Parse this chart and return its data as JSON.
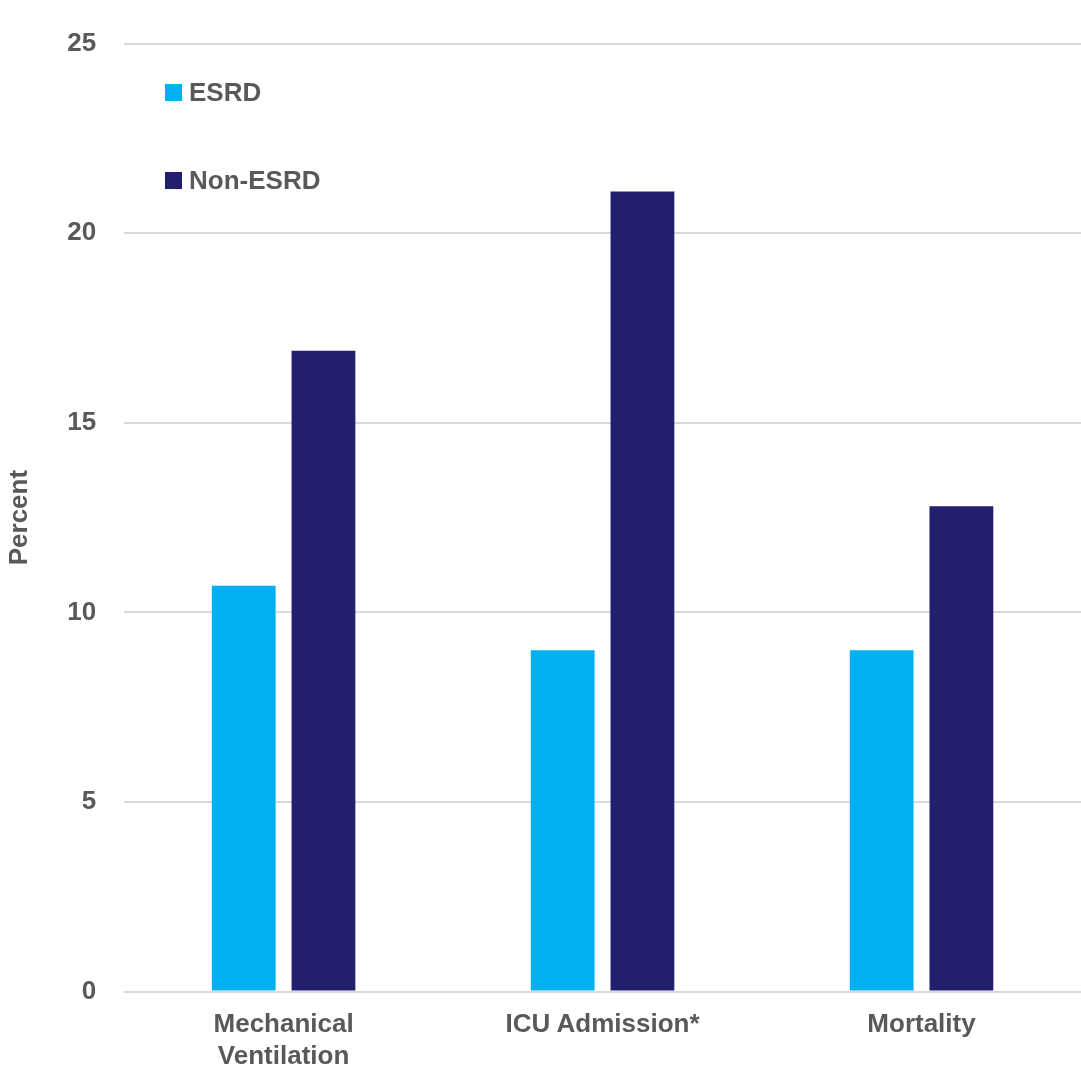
{
  "chart_data": {
    "type": "bar",
    "ylabel": "Percent",
    "categories": [
      "Mechanical Ventilation",
      "ICU Admission*",
      "Mortality"
    ],
    "series": [
      {
        "name": "ESRD",
        "color": "#00b0f0",
        "values": [
          10.7,
          9.0,
          9.0
        ]
      },
      {
        "name": "Non-ESRD",
        "color": "#221f6e",
        "values": [
          16.9,
          21.1,
          12.8
        ]
      }
    ],
    "ylim": [
      0,
      25
    ],
    "yticks": [
      0,
      5,
      10,
      15,
      20,
      25
    ],
    "grid": "y",
    "legend": "top left"
  }
}
